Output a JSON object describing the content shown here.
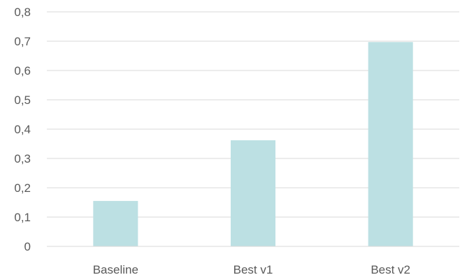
{
  "chart_data": {
    "type": "bar",
    "categories": [
      "Baseline",
      "Best v1",
      "Best v2"
    ],
    "values": [
      0.155,
      0.362,
      0.697
    ],
    "ylim": [
      0,
      0.8
    ],
    "yticks": [
      "0",
      "0,1",
      "0,2",
      "0,3",
      "0,4",
      "0,5",
      "0,6",
      "0,7",
      "0,8"
    ],
    "grid": true,
    "bar_color": "#bce0e3",
    "title": "",
    "xlabel": "",
    "ylabel": ""
  }
}
